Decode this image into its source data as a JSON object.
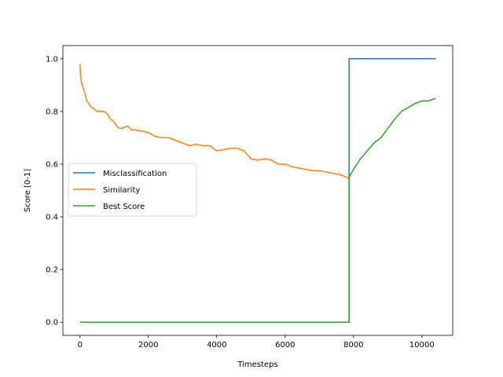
{
  "chart_data": {
    "type": "line",
    "xlabel": "Timesteps",
    "ylabel": "Score [0-1]",
    "xlim": [
      -500,
      10900
    ],
    "ylim": [
      -0.05,
      1.05
    ],
    "xticks": [
      0,
      2000,
      4000,
      6000,
      8000,
      10000
    ],
    "yticks": [
      0.0,
      0.2,
      0.4,
      0.6,
      0.8,
      1.0
    ],
    "xtick_labels": [
      "0",
      "2000",
      "4000",
      "6000",
      "8000",
      "10000"
    ],
    "ytick_labels": [
      "0.0",
      "0.2",
      "0.4",
      "0.6",
      "0.8",
      "1.0"
    ],
    "grid": false,
    "legend_position": "center-left",
    "series": [
      {
        "name": "Misclassification",
        "color": "#1f77b4",
        "x": [
          0,
          7870,
          7870,
          10400
        ],
        "y": [
          0,
          0,
          1,
          1
        ]
      },
      {
        "name": "Similarity",
        "color": "#ff7f0e",
        "x": [
          0,
          20,
          60,
          120,
          200,
          260,
          300,
          400,
          500,
          600,
          700,
          800,
          900,
          1000,
          1100,
          1200,
          1300,
          1400,
          1500,
          1600,
          1800,
          2000,
          2200,
          2400,
          2600,
          2800,
          3000,
          3200,
          3400,
          3600,
          3800,
          4000,
          4200,
          4400,
          4600,
          4800,
          5000,
          5200,
          5400,
          5600,
          5800,
          6000,
          6200,
          6400,
          6600,
          6800,
          7000,
          7200,
          7400,
          7600,
          7800,
          7870
        ],
        "y": [
          0.98,
          0.93,
          0.9,
          0.88,
          0.84,
          0.83,
          0.82,
          0.81,
          0.8,
          0.8,
          0.8,
          0.79,
          0.77,
          0.76,
          0.74,
          0.735,
          0.74,
          0.745,
          0.73,
          0.73,
          0.725,
          0.72,
          0.705,
          0.7,
          0.7,
          0.69,
          0.68,
          0.67,
          0.675,
          0.67,
          0.67,
          0.65,
          0.655,
          0.66,
          0.66,
          0.65,
          0.62,
          0.615,
          0.62,
          0.615,
          0.6,
          0.6,
          0.59,
          0.585,
          0.58,
          0.575,
          0.575,
          0.57,
          0.565,
          0.56,
          0.55,
          0.545
        ]
      },
      {
        "name": "Best Score",
        "color": "#2ca02c",
        "x": [
          0,
          7870,
          7870,
          8000,
          8200,
          8400,
          8600,
          8800,
          9000,
          9200,
          9400,
          9600,
          9800,
          10000,
          10200,
          10400
        ],
        "y": [
          0,
          0,
          0.55,
          0.58,
          0.62,
          0.65,
          0.68,
          0.7,
          0.735,
          0.77,
          0.8,
          0.815,
          0.83,
          0.84,
          0.84,
          0.85
        ]
      }
    ]
  }
}
